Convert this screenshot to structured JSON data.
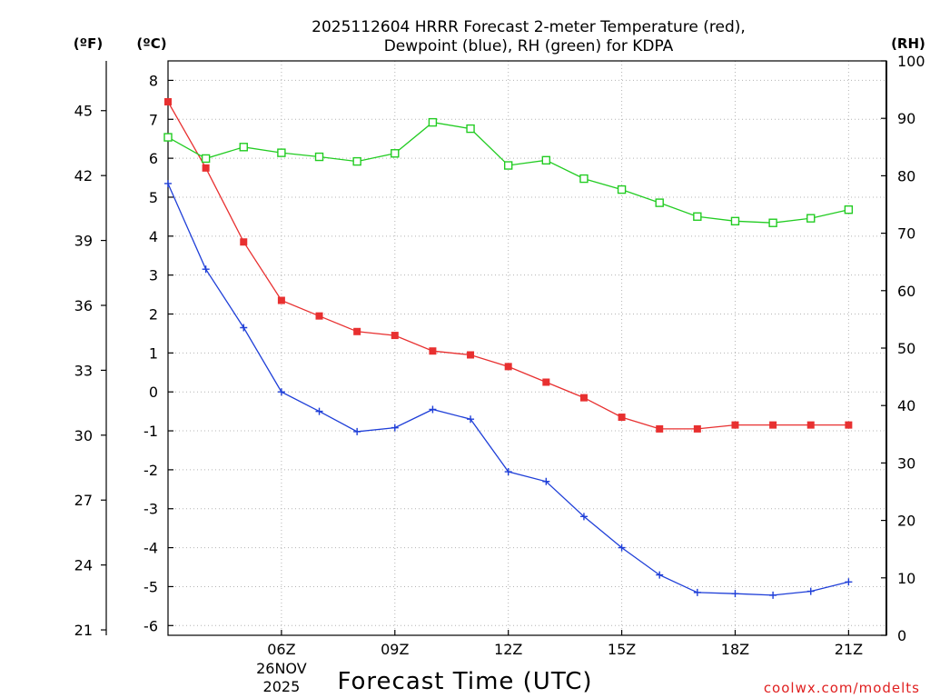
{
  "chart_data": {
    "type": "line",
    "title_line1": "2025112604 HRRR Forecast 2-meter Temperature (red),",
    "title_line2": "Dewpoint (blue), RH (green) for KDPA",
    "xlabel": "Forecast Time (UTC)",
    "credit": "coolwx.com/modelts",
    "unit_f": "(ºF)",
    "unit_c": "(ºC)",
    "unit_rh": "(RH)",
    "x_hours": [
      3,
      4,
      5,
      6,
      7,
      8,
      9,
      10,
      11,
      12,
      13,
      14,
      15,
      16,
      17,
      18,
      19,
      20,
      21,
      22
    ],
    "xlim": [
      3,
      22
    ],
    "x_ticks": [
      {
        "hour": 6,
        "label": "06Z",
        "date1": "26NOV",
        "date2": "2025"
      },
      {
        "hour": 9,
        "label": "09Z"
      },
      {
        "hour": 12,
        "label": "12Z"
      },
      {
        "hour": 15,
        "label": "15Z"
      },
      {
        "hour": 18,
        "label": "18Z"
      },
      {
        "hour": 21,
        "label": "21Z"
      }
    ],
    "ylim_c": [
      -6.25,
      8.5
    ],
    "yticks_c": [
      "-6",
      "-5",
      "-4",
      "-3",
      "-2",
      "-1",
      "0",
      "1",
      "2",
      "3",
      "4",
      "5",
      "6",
      "7",
      "8"
    ],
    "yticks_f": [
      "21",
      "24",
      "27",
      "30",
      "33",
      "36",
      "39",
      "42",
      "45"
    ],
    "ylim_rh": [
      0,
      100
    ],
    "yticks_rh": [
      "0",
      "10",
      "20",
      "30",
      "40",
      "50",
      "60",
      "70",
      "80",
      "90",
      "100"
    ],
    "series": [
      {
        "name": "2-meter Temperature",
        "color": "#e83030",
        "marker": "filled-square",
        "axis": "C",
        "values": [
          7.45,
          5.75,
          3.85,
          2.35,
          1.95,
          1.55,
          1.45,
          1.05,
          0.95,
          0.65,
          0.25,
          -0.15,
          -0.65,
          -0.95,
          -0.95,
          -0.85,
          -0.85,
          -0.85,
          -0.85
        ]
      },
      {
        "name": "Dewpoint",
        "color": "#1f3fd8",
        "marker": "plus",
        "axis": "C",
        "values": [
          5.35,
          3.15,
          1.65,
          0.0,
          -0.5,
          -1.02,
          -0.92,
          -0.45,
          -0.7,
          -2.05,
          -2.3,
          -3.2,
          -4.0,
          -4.7,
          -5.15,
          -5.18,
          -5.22,
          -5.12,
          -4.88
        ]
      },
      {
        "name": "RH",
        "color": "#22cc22",
        "marker": "open-square",
        "axis": "RH",
        "values": [
          86.7,
          83.0,
          85.0,
          84.0,
          83.3,
          82.5,
          83.9,
          89.3,
          88.2,
          81.8,
          82.7,
          79.5,
          77.6,
          75.3,
          72.9,
          72.1,
          71.8,
          72.6,
          74.1
        ]
      }
    ],
    "grid": true
  }
}
